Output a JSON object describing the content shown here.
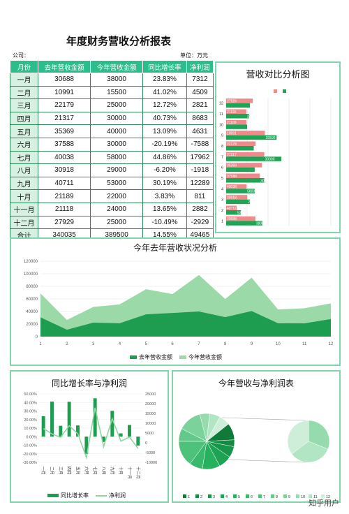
{
  "title": "年度财务营收分析报表",
  "company_label": "公司：",
  "unit_label": "单位：万元",
  "table": {
    "headers": [
      "月份",
      "去年营收金额",
      "今年营收金额",
      "同比增长率",
      "净利润"
    ],
    "rows": [
      [
        "一月",
        "30688",
        "38000",
        "23.83%",
        "7312"
      ],
      [
        "二月",
        "10991",
        "15500",
        "41.02%",
        "4509"
      ],
      [
        "三月",
        "22179",
        "25000",
        "12.72%",
        "2821"
      ],
      [
        "四月",
        "21317",
        "30000",
        "40.73%",
        "8683"
      ],
      [
        "五月",
        "35369",
        "40000",
        "13.09%",
        "4631"
      ],
      [
        "六月",
        "37588",
        "30000",
        "-20.19%",
        "-7588"
      ],
      [
        "七月",
        "40038",
        "58000",
        "44.86%",
        "17962"
      ],
      [
        "八月",
        "30918",
        "29000",
        "-6.20%",
        "-1918"
      ],
      [
        "九月",
        "40711",
        "53000",
        "30.19%",
        "12289"
      ],
      [
        "十月",
        "21189",
        "22000",
        "3.83%",
        "811"
      ],
      [
        "十一月",
        "21118",
        "24000",
        "13.65%",
        "2882"
      ],
      [
        "十二月",
        "27929",
        "25000",
        "-10.49%",
        "-2929"
      ]
    ],
    "total": [
      "合计",
      "340035",
      "389500",
      "14.55%",
      "49465"
    ]
  },
  "chart_data": [
    {
      "type": "bar",
      "orientation": "horizontal",
      "title": "营收对比分析图",
      "categories": [
        "1",
        "2",
        "3",
        "4",
        "5",
        "6",
        "7",
        "8",
        "9",
        "10",
        "11",
        "12"
      ],
      "series": [
        {
          "values": [
            30688,
            10991,
            22179,
            21317,
            35369,
            37588,
            40038,
            30918,
            40711,
            21189,
            21118,
            27929
          ],
          "color": "#f08a8a"
        },
        {
          "values": [
            38000,
            15500,
            25000,
            30000,
            40000,
            30000,
            58000,
            29000,
            53000,
            22000,
            24000,
            25000
          ],
          "color": "#1fa354"
        }
      ],
      "data_labels": [
        "30688",
        "38000",
        "40711",
        "53000",
        "30918",
        "29000",
        "40038",
        "58000",
        "37588",
        "30000",
        "35369",
        "40000",
        "21317",
        "30000",
        "22179",
        "25000",
        "10991",
        "15500",
        "21189",
        "22000",
        "21118",
        "24000",
        "27929",
        "25000"
      ],
      "legend": "top"
    },
    {
      "type": "area",
      "title": "今年去年营收状况分析",
      "x": [
        1,
        2,
        3,
        4,
        5,
        6,
        7,
        8,
        9,
        10,
        11,
        12
      ],
      "x_ticks": [
        "1",
        "2",
        "3",
        "4",
        "5",
        "6",
        "7",
        "8",
        "9",
        "10",
        "11",
        "12"
      ],
      "y_ticks": [
        "0",
        "20000",
        "40000",
        "60000",
        "80000",
        "100000",
        "120000"
      ],
      "ylim": [
        0,
        120000
      ],
      "series": [
        {
          "name": "去年营收金额",
          "values": [
            30688,
            10991,
            22179,
            21317,
            35369,
            37588,
            40038,
            30918,
            40711,
            21189,
            21118,
            27929
          ],
          "color": "#1e9c4f"
        },
        {
          "name": "今年营收金额",
          "values": [
            68688,
            26491,
            47179,
            51317,
            75369,
            67588,
            98038,
            59918,
            93711,
            43189,
            45118,
            52929
          ],
          "color": "#9bd9a9"
        }
      ],
      "legend": "bottom"
    },
    {
      "type": "bar",
      "title": "同比增长率与净利润",
      "categories": [
        "一月",
        "二月",
        "三月",
        "四月",
        "五月",
        "六月",
        "七月",
        "八月",
        "九月",
        "十月",
        "十一月",
        "十二月"
      ],
      "series": [
        {
          "name": "同比增长率",
          "values": [
            23.83,
            41.02,
            12.72,
            40.73,
            13.09,
            -20.19,
            44.86,
            -6.2,
            30.19,
            3.83,
            13.65,
            -10.49
          ],
          "axis": "left",
          "color": "#1e9c4f"
        },
        {
          "name": "净利润",
          "type": "line",
          "values": [
            7312,
            4509,
            2821,
            8683,
            4631,
            -7588,
            17962,
            -1918,
            12289,
            811,
            2882,
            -2929
          ],
          "axis": "right",
          "color": "#8fd6a3"
        }
      ],
      "y_left_ticks": [
        "50.00%",
        "40.00%",
        "30.00%",
        "20.00%",
        "10.00%",
        "0.00%",
        "-10.00%",
        "-20.00%",
        "-30.00%"
      ],
      "y_right_ticks": [
        "25000",
        "20000",
        "15000",
        "10000",
        "5000",
        "0",
        "-5000",
        "-10000"
      ],
      "ylim_left": [
        -30,
        50
      ],
      "ylim_right": [
        -10000,
        25000
      ],
      "legend": "bottom"
    },
    {
      "type": "pie",
      "title": "今年营收与净利润表",
      "categories": [
        "1",
        "2",
        "3",
        "4",
        "5",
        "6",
        "7",
        "8",
        "9",
        "10",
        "11",
        "12"
      ],
      "values": [
        38000,
        15500,
        25000,
        30000,
        40000,
        30000,
        58000,
        29000,
        53000,
        22000,
        24000,
        25000
      ],
      "sub_values": [
        22000,
        24000,
        25000
      ],
      "colors": [
        "#0f7a3a",
        "#138a42",
        "#17964a",
        "#1ea354",
        "#27b05e",
        "#38b96b",
        "#4cc27a",
        "#62c98a",
        "#7bd29b",
        "#95dbad",
        "#b2e5c4",
        "#cfeed9"
      ],
      "legend": "bottom"
    }
  ],
  "brand": "知乎用户"
}
